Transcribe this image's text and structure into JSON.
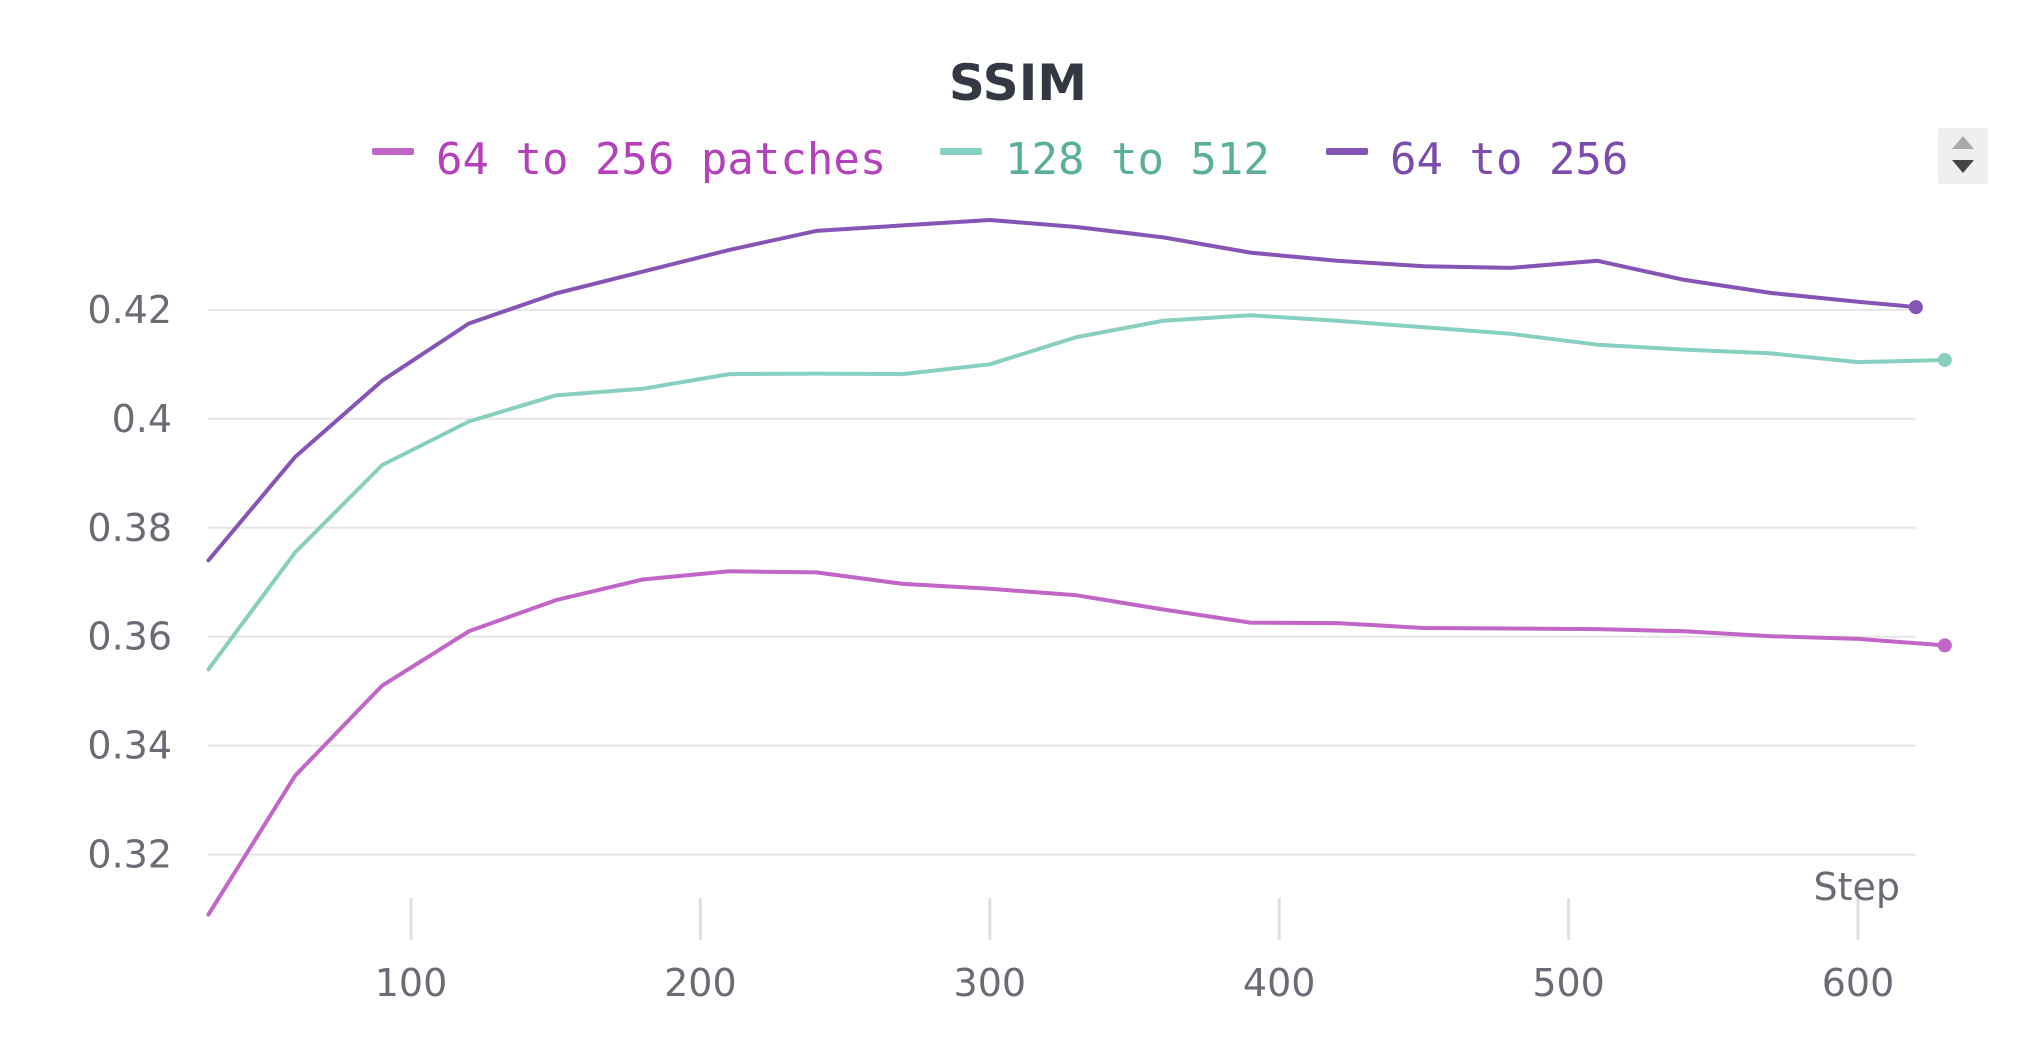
{
  "chart_data": {
    "type": "line",
    "title": "SSIM",
    "xlabel": "Step",
    "ylabel": "",
    "xlim": [
      25,
      630
    ],
    "ylim": [
      0.308,
      0.442
    ],
    "xticks": [
      100,
      200,
      300,
      400,
      500,
      600
    ],
    "yticks": [
      0.32,
      0.34,
      0.36,
      0.38,
      0.4,
      0.42
    ],
    "xtick_labels": [
      "100",
      "200",
      "300",
      "400",
      "500",
      "600"
    ],
    "ytick_labels": [
      "0.32",
      "0.34",
      "0.36",
      "0.38",
      "0.4",
      "0.42"
    ],
    "grid": true,
    "legend_position": "top-center",
    "series": [
      {
        "name": "64 to 256 patches",
        "color": "#c165c6",
        "legend_color": "#b540bb",
        "x": [
          30,
          60,
          90,
          120,
          150,
          180,
          210,
          240,
          270,
          300,
          330,
          360,
          390,
          420,
          450,
          480,
          510,
          540,
          570,
          600,
          630
        ],
        "y": [
          0.309,
          0.3345,
          0.351,
          0.361,
          0.3667,
          0.3705,
          0.372,
          0.3718,
          0.3697,
          0.3688,
          0.3676,
          0.365,
          0.3626,
          0.3625,
          0.3616,
          0.3615,
          0.3614,
          0.361,
          0.3601,
          0.3596,
          0.3584
        ]
      },
      {
        "name": "128 to 512",
        "color": "#87cfbe",
        "legend_color": "#5aaf9a",
        "x": [
          30,
          60,
          90,
          120,
          150,
          180,
          210,
          240,
          270,
          300,
          330,
          360,
          390,
          420,
          450,
          480,
          510,
          540,
          570,
          600,
          630
        ],
        "y": [
          0.354,
          0.3755,
          0.3915,
          0.3995,
          0.4043,
          0.4055,
          0.4082,
          0.4083,
          0.4082,
          0.41,
          0.415,
          0.418,
          0.419,
          0.418,
          0.4168,
          0.4156,
          0.4136,
          0.4127,
          0.412,
          0.4104,
          0.4108
        ]
      },
      {
        "name": "64 to 256",
        "color": "#8554b5",
        "legend_color": "#7c4cad",
        "x": [
          30,
          60,
          90,
          120,
          150,
          180,
          210,
          240,
          270,
          300,
          330,
          360,
          390,
          420,
          450,
          480,
          510,
          540,
          570,
          600,
          620
        ],
        "y": [
          0.374,
          0.393,
          0.407,
          0.4175,
          0.423,
          0.427,
          0.431,
          0.4345,
          0.4355,
          0.4365,
          0.4352,
          0.4333,
          0.4305,
          0.429,
          0.428,
          0.4277,
          0.429,
          0.4255,
          0.4231,
          0.4215,
          0.4205
        ]
      }
    ]
  }
}
